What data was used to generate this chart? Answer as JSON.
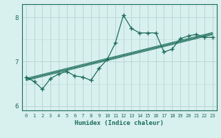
{
  "x": [
    0,
    1,
    2,
    3,
    4,
    5,
    6,
    7,
    8,
    9,
    10,
    11,
    12,
    13,
    14,
    15,
    16,
    17,
    18,
    19,
    20,
    21,
    22,
    23
  ],
  "y_main": [
    6.65,
    6.55,
    6.38,
    6.62,
    6.72,
    6.78,
    6.68,
    6.65,
    6.58,
    6.85,
    7.05,
    7.42,
    8.05,
    7.75,
    7.65,
    7.65,
    7.65,
    7.22,
    7.28,
    7.52,
    7.58,
    7.62,
    7.55,
    7.55
  ],
  "y_trend": [
    6.6,
    6.645,
    6.69,
    6.735,
    6.78,
    6.825,
    6.87,
    6.915,
    6.96,
    7.005,
    7.05,
    7.095,
    7.14,
    7.185,
    7.23,
    7.275,
    7.32,
    7.365,
    7.41,
    7.455,
    7.5,
    7.545,
    7.59,
    7.635
  ],
  "y_upper": [
    6.625,
    6.67,
    6.715,
    6.76,
    6.805,
    6.85,
    6.895,
    6.94,
    6.985,
    7.03,
    7.075,
    7.12,
    7.165,
    7.21,
    7.255,
    7.3,
    7.345,
    7.39,
    7.435,
    7.48,
    7.525,
    7.57,
    7.615,
    7.66
  ],
  "y_lower": [
    6.575,
    6.62,
    6.665,
    6.71,
    6.755,
    6.8,
    6.845,
    6.89,
    6.935,
    6.98,
    7.025,
    7.07,
    7.115,
    7.16,
    7.205,
    7.25,
    7.295,
    7.34,
    7.385,
    7.43,
    7.475,
    7.52,
    7.565,
    7.61
  ],
  "color_main": "#1a6b5a",
  "bgcolor": "#d8f0ee",
  "grid_color": "#b8d8d4",
  "xlabel": "Humidex (Indice chaleur)",
  "ylim": [
    5.9,
    8.3
  ],
  "xlim": [
    -0.5,
    23.5
  ],
  "yticks": [
    6,
    7,
    8
  ],
  "xticks": [
    0,
    1,
    2,
    3,
    4,
    5,
    6,
    7,
    8,
    9,
    10,
    11,
    12,
    13,
    14,
    15,
    16,
    17,
    18,
    19,
    20,
    21,
    22,
    23
  ]
}
